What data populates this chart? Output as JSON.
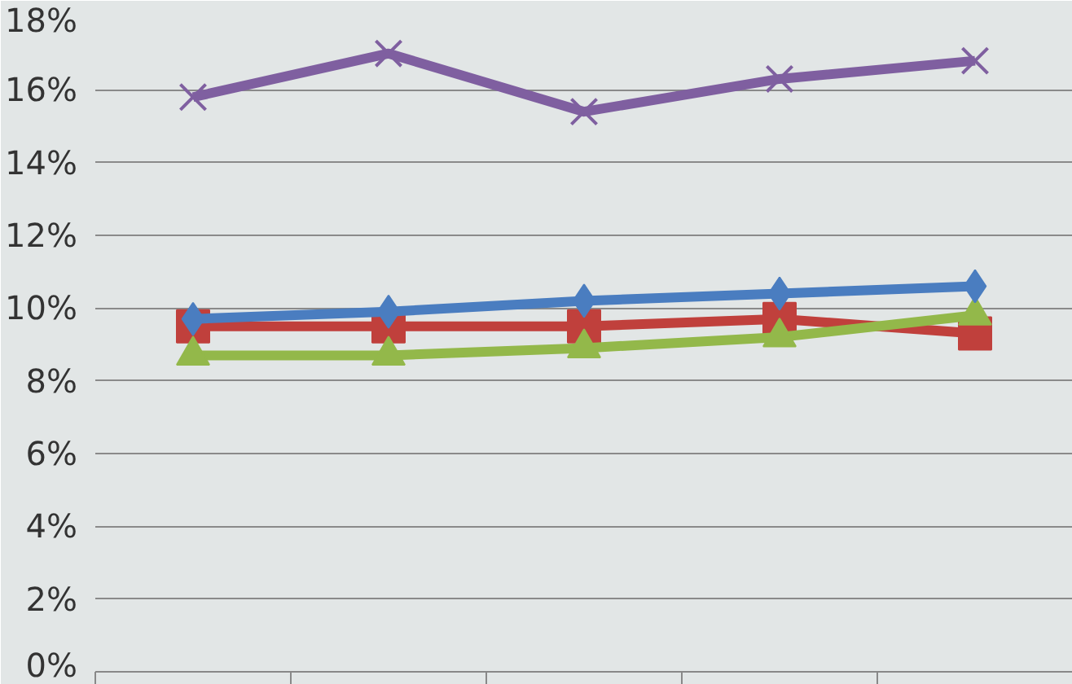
{
  "chart_data": {
    "type": "line",
    "categories": [
      null,
      null,
      null,
      null,
      null
    ],
    "series": [
      {
        "color": "#c0403c",
        "marker": "square",
        "values": [
          9.5,
          9.5,
          9.5,
          9.7,
          9.3
        ]
      },
      {
        "color": "#93b84a",
        "marker": "triangle",
        "values": [
          8.7,
          8.7,
          8.9,
          9.2,
          9.8
        ]
      },
      {
        "color": "#4a7dc0",
        "marker": "diamond",
        "values": [
          9.7,
          9.9,
          10.2,
          10.4,
          10.6
        ]
      },
      {
        "color": "#7f5fa0",
        "marker": "cross",
        "values": [
          15.8,
          17.0,
          15.4,
          16.3,
          16.8
        ]
      }
    ],
    "ylim": [
      0,
      18
    ],
    "yticks": [
      {
        "value": 0,
        "label": "0%"
      },
      {
        "value": 2,
        "label": "2%"
      },
      {
        "value": 4,
        "label": "4%"
      },
      {
        "value": 6,
        "label": "6%"
      },
      {
        "value": 8,
        "label": "8%"
      },
      {
        "value": 10,
        "label": "10%"
      },
      {
        "value": 12,
        "label": "12%"
      },
      {
        "value": 14,
        "label": "14%"
      },
      {
        "value": 16,
        "label": "16%"
      },
      {
        "value": 18,
        "label": "18%"
      }
    ],
    "grid": "y",
    "tick_labels": "y",
    "line_style": "solid"
  }
}
